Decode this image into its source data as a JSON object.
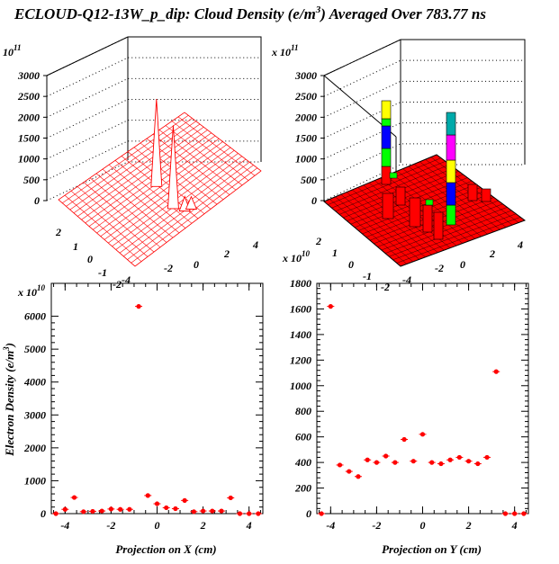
{
  "title": {
    "main": "ECLOUD-Q12-13W_p_dip: Cloud Density (e/m",
    "sup": "3",
    "rest": ") Averaged Over 783.77 ns"
  },
  "colors": {
    "marker": "#ff0000",
    "surface_line": "#ff0000",
    "lego_fill": "#ff0000",
    "lego_stack": [
      "#00ff00",
      "#0000ff",
      "#ff00ff",
      "#ffff00",
      "#00aaaa"
    ]
  },
  "chart_data": [
    {
      "id": "surface-3d",
      "type": "surface",
      "multiplier": {
        "base": "x 10",
        "exp": "11"
      },
      "z_ticks": [
        "0",
        "500",
        "1000",
        "1500",
        "2000",
        "2500",
        "3000"
      ],
      "x_ticks": [
        "-4",
        "-2",
        "0",
        "2",
        "4"
      ],
      "y_ticks": [
        "-2",
        "-1",
        "0",
        "1",
        "2"
      ],
      "peaks": [
        {
          "x": -0.4,
          "y": 0.0,
          "z": 2100
        },
        {
          "x": 2.2,
          "y": -0.2,
          "z": 2000
        },
        {
          "x": 3.0,
          "y": 0.0,
          "z": 350
        },
        {
          "x": 3.2,
          "y": 0.2,
          "z": 300
        }
      ],
      "grid": true
    },
    {
      "id": "lego-3d",
      "type": "lego",
      "multiplier": {
        "base": "x 10",
        "exp": "11"
      },
      "z_ticks": [
        "0",
        "500",
        "1000",
        "1500",
        "2000",
        "2500",
        "3000"
      ],
      "x_ticks": [
        "-4",
        "-2",
        "0",
        "2",
        "4"
      ],
      "y_ticks": [
        "-2",
        "-1",
        "0",
        "1",
        "2"
      ],
      "tall_bars": [
        {
          "x": -3.6,
          "y": -0.2,
          "z": 2200
        },
        {
          "x": 3.6,
          "y": 0.0,
          "z": 2000
        }
      ],
      "grid": true
    },
    {
      "id": "proj-x",
      "type": "scatter",
      "multiplier": {
        "base": "x 10",
        "exp": "10"
      },
      "xlabel": "Projection on X (cm)",
      "ylabel": "Electron Density (e/m",
      "ylabel_sup": "3",
      "ylabel_end": ")",
      "xlim": [
        -4.6,
        4.6
      ],
      "ylim": [
        0,
        7000
      ],
      "x_ticks": [
        -4,
        -2,
        0,
        2,
        4
      ],
      "y_ticks": [
        0,
        1000,
        2000,
        3000,
        4000,
        5000,
        6000
      ],
      "x": [
        -4.4,
        -4.0,
        -3.6,
        -3.2,
        -2.8,
        -2.4,
        -2.0,
        -1.6,
        -1.2,
        -0.8,
        -0.4,
        0.0,
        0.4,
        0.8,
        1.2,
        1.6,
        2.0,
        2.4,
        2.8,
        3.2,
        3.6,
        4.0,
        4.4
      ],
      "y": [
        0,
        130,
        490,
        60,
        70,
        80,
        140,
        130,
        130,
        6300,
        550,
        300,
        180,
        150,
        400,
        60,
        80,
        80,
        80,
        480,
        0,
        0,
        0
      ]
    },
    {
      "id": "proj-y",
      "type": "scatter",
      "xlabel": "Projection on Y (cm)",
      "xlim": [
        -4.6,
        4.6
      ],
      "ylim": [
        0,
        1800
      ],
      "x_ticks": [
        -4,
        -2,
        0,
        2,
        4
      ],
      "y_ticks": [
        0,
        200,
        400,
        600,
        800,
        1000,
        1200,
        1400,
        1600,
        1800
      ],
      "x": [
        -4.4,
        -4.0,
        -3.6,
        -3.2,
        -2.8,
        -2.4,
        -2.0,
        -1.6,
        -1.2,
        -0.8,
        -0.4,
        0.0,
        0.4,
        0.8,
        1.2,
        1.6,
        2.0,
        2.4,
        2.8,
        3.2,
        3.6,
        4.0,
        4.4
      ],
      "y": [
        0,
        1620,
        380,
        330,
        290,
        420,
        400,
        450,
        400,
        580,
        410,
        620,
        400,
        390,
        420,
        440,
        410,
        390,
        440,
        1110,
        0,
        0,
        0
      ]
    }
  ]
}
